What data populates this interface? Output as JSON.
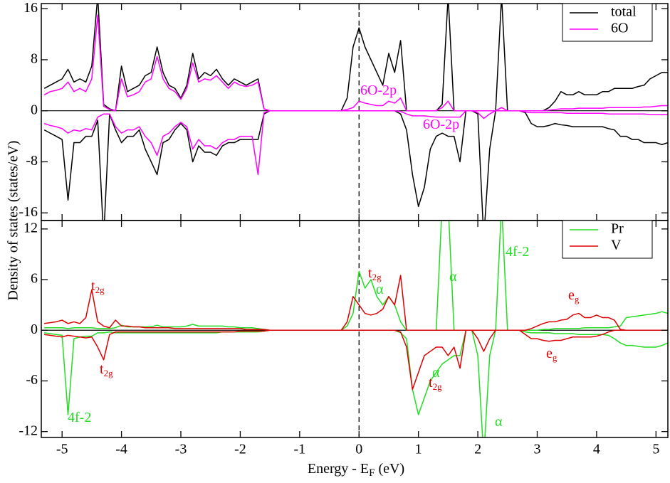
{
  "chart_data": [
    {
      "type": "line",
      "ylabel": "Density of states (states/eV)",
      "x": [
        -5.3,
        -5.2,
        -5.1,
        -5,
        -4.9,
        -4.8,
        -4.7,
        -4.6,
        -4.5,
        -4.4,
        -4.3,
        -4.2,
        -4.1,
        -4,
        -3.9,
        -3.8,
        -3.7,
        -3.6,
        -3.5,
        -3.4,
        -3.3,
        -3.2,
        -3.1,
        -3,
        -2.9,
        -2.8,
        -2.7,
        -2.6,
        -2.5,
        -2.4,
        -2.3,
        -2.2,
        -2.1,
        -2,
        -1.9,
        -1.8,
        -1.7,
        -1.6,
        -1.5,
        -1.4,
        -1.3,
        -1.2,
        -1.1,
        -1,
        -0.9,
        -0.8,
        -0.7,
        -0.6,
        -0.5,
        -0.4,
        -0.3,
        -0.2,
        -0.1,
        0,
        0.1,
        0.2,
        0.3,
        0.4,
        0.5,
        0.6,
        0.7,
        0.8,
        0.9,
        1,
        1.1,
        1.2,
        1.3,
        1.4,
        1.5,
        1.6,
        1.7,
        1.8,
        1.9,
        2,
        2.1,
        2.2,
        2.3,
        2.4,
        2.5,
        2.6,
        2.7,
        2.8,
        2.9,
        3,
        3.1,
        3.2,
        3.3,
        3.4,
        3.5,
        3.6,
        3.7,
        3.8,
        3.9,
        4,
        4.1,
        4.2,
        4.3,
        4.4,
        4.5,
        4.6,
        4.7,
        4.8,
        4.9,
        5,
        5.1,
        5.2
      ],
      "xlim": [
        -5.35,
        5.2
      ],
      "xticks": [
        -5,
        -4,
        -3,
        -2,
        -1,
        0,
        1,
        2,
        3,
        4,
        5
      ],
      "show_xtick_labels": false,
      "ylim": [
        -17.2,
        16.8
      ],
      "yticks": [
        -16,
        -8,
        0,
        8,
        16
      ],
      "fermi_line": 0,
      "legend": "upper right",
      "series": [
        {
          "name": "total",
          "color": "#000000",
          "values": [
            3.5,
            4,
            4.5,
            5,
            6.5,
            4.5,
            5,
            4.5,
            7,
            18,
            1,
            0.3,
            0,
            7,
            3,
            3.5,
            4,
            5.5,
            6,
            10,
            6,
            4,
            3.5,
            2,
            4,
            9,
            5,
            6,
            5.5,
            6.5,
            5,
            4,
            5,
            4.5,
            4,
            4.5,
            5,
            0.3,
            0,
            0,
            0,
            0,
            0,
            0,
            0,
            0,
            0,
            0,
            0,
            0,
            0,
            2,
            10,
            13,
            10,
            8,
            6,
            4,
            9,
            6,
            11,
            0,
            0,
            0,
            0,
            0,
            0,
            1,
            18,
            0,
            0,
            0,
            0,
            0,
            0,
            0,
            0,
            18,
            0,
            0,
            0,
            0,
            0,
            0,
            0,
            0.5,
            1.5,
            3,
            2.5,
            2.5,
            3,
            2.5,
            2.5,
            2.5,
            3,
            3,
            3.5,
            3.5,
            3.5,
            3.5,
            3.8,
            4,
            5,
            5.5,
            6,
            6
          ],
          "values_down": [
            -3,
            -3.5,
            -4,
            -4.5,
            -14,
            -5,
            -5,
            -4,
            -4,
            -1.5,
            -20,
            -0.5,
            -3,
            -5,
            -4,
            -4,
            -3,
            -6,
            -8,
            -10,
            -5,
            -4.5,
            -3,
            -2,
            -3,
            -8,
            -5.5,
            -6.5,
            -6.5,
            -7,
            -5.5,
            -5,
            -5,
            -4.5,
            -4.5,
            -4.5,
            -4.5,
            -0.5,
            0,
            0,
            0,
            0,
            0,
            0,
            0,
            0,
            0,
            0,
            0,
            0,
            0,
            0,
            0,
            0,
            0,
            0,
            0,
            0,
            0,
            0,
            -0.5,
            -3,
            -10,
            -15,
            -12,
            -6,
            -4,
            -3.5,
            -4,
            -4,
            -8,
            0,
            0,
            -0.5,
            -20,
            -6,
            0,
            0,
            0,
            0,
            0,
            -0.3,
            -2,
            -2.5,
            -2.5,
            -2.3,
            -2,
            -2.2,
            -2.3,
            -2.5,
            -2.5,
            -2.5,
            -2.5,
            -2.5,
            -2.5,
            -2.8,
            -3,
            -4,
            -4,
            -4.5,
            -4.5,
            -5,
            -5,
            -5,
            -5.3,
            -5
          ]
        },
        {
          "name": "6O",
          "color": "#ff00ff",
          "values": [
            2.5,
            3,
            3.2,
            3.5,
            4.5,
            3,
            3.5,
            3,
            5,
            15,
            0.7,
            0.2,
            0,
            5,
            2.2,
            2.5,
            3,
            4.5,
            5,
            8.5,
            5,
            3.5,
            3,
            1.8,
            3.5,
            7.5,
            4.5,
            5,
            4.8,
            5.5,
            4.5,
            3.5,
            4.5,
            4,
            3.8,
            4,
            4.5,
            0.3,
            0,
            0,
            0,
            0,
            0,
            0,
            0,
            0,
            0,
            0,
            0,
            0,
            0,
            0.2,
            0.5,
            1.5,
            1.2,
            1,
            0.8,
            0.8,
            1.5,
            1.2,
            2,
            0,
            0,
            0,
            0,
            0,
            0,
            0.5,
            1.5,
            0,
            0,
            0,
            0,
            0,
            0,
            0,
            0,
            0.5,
            0,
            0,
            0,
            0,
            0,
            0,
            0,
            0.1,
            0.2,
            0.3,
            0.3,
            0.3,
            0.4,
            0.4,
            0.4,
            0.4,
            0.4,
            0.5,
            0.5,
            0.5,
            0.5,
            0.5,
            0.5,
            0.6,
            0.6,
            0.7,
            0.8,
            0.8
          ],
          "values_down": [
            -2,
            -2.3,
            -2.5,
            -2.8,
            -3.5,
            -3,
            -3.2,
            -2.8,
            -3,
            -1,
            -0.5,
            -0.5,
            -2.5,
            -3.5,
            -3,
            -3,
            -2.5,
            -4,
            -5,
            -7,
            -4,
            -3.5,
            -2.5,
            -1.8,
            -2.5,
            -6,
            -4.5,
            -5.5,
            -5.5,
            -6,
            -5,
            -4.5,
            -4.5,
            -4,
            -4,
            -4,
            -10,
            -0.3,
            0,
            0,
            0,
            0,
            0,
            0,
            0,
            0,
            0,
            0,
            0,
            0,
            0,
            0,
            0,
            0,
            0,
            0,
            0,
            0,
            0,
            0,
            -0.1,
            -0.5,
            -0.8,
            -0.8,
            -0.8,
            -0.9,
            -1,
            -1,
            -1,
            -1,
            -1,
            0,
            0,
            -0.3,
            -1.2,
            -0.5,
            0,
            0,
            0,
            0,
            0,
            -0.2,
            -0.3,
            -0.3,
            -0.3,
            -0.3,
            -0.3,
            -0.3,
            -0.4,
            -0.4,
            -0.4,
            -0.4,
            -0.4,
            -0.4,
            -0.4,
            -0.5,
            -0.5,
            -0.5,
            -0.5,
            -0.5,
            -0.5,
            -0.5,
            -0.6,
            -0.6,
            -0.6,
            -0.6
          ]
        }
      ],
      "annotations": [
        {
          "text": "6O-2p",
          "color": "#ff00ff"
        },
        {
          "text": "6O-2p",
          "color": "#ff00ff"
        }
      ]
    },
    {
      "type": "line",
      "xlabel": [
        "Energy - E",
        "F",
        " (eV)"
      ],
      "x": [
        -5.3,
        -5.2,
        -5.1,
        -5,
        -4.9,
        -4.8,
        -4.7,
        -4.6,
        -4.5,
        -4.4,
        -4.3,
        -4.2,
        -4.1,
        -4,
        -3.9,
        -3.8,
        -3.7,
        -3.6,
        -3.5,
        -3.4,
        -3.3,
        -3.2,
        -3.1,
        -3,
        -2.9,
        -2.8,
        -2.7,
        -2.6,
        -2.5,
        -2.4,
        -2.3,
        -2.2,
        -2.1,
        -2,
        -1.9,
        -1.8,
        -1.7,
        -1.6,
        -1.5,
        -1.4,
        -1.3,
        -1.2,
        -1.1,
        -1,
        -0.9,
        -0.8,
        -0.7,
        -0.6,
        -0.5,
        -0.4,
        -0.3,
        -0.2,
        -0.1,
        0,
        0.1,
        0.2,
        0.3,
        0.4,
        0.5,
        0.6,
        0.7,
        0.8,
        0.9,
        1,
        1.1,
        1.2,
        1.3,
        1.4,
        1.5,
        1.6,
        1.7,
        1.8,
        1.9,
        2,
        2.1,
        2.2,
        2.3,
        2.4,
        2.5,
        2.6,
        2.7,
        2.8,
        2.9,
        3,
        3.1,
        3.2,
        3.3,
        3.4,
        3.5,
        3.6,
        3.7,
        3.8,
        3.9,
        4,
        4.1,
        4.2,
        4.3,
        4.4,
        4.5,
        4.6,
        4.7,
        4.8,
        4.9,
        5,
        5.1,
        5.2
      ],
      "xlim": [
        -5.35,
        5.2
      ],
      "xticks": [
        -5,
        -4,
        -3,
        -2,
        -1,
        0,
        1,
        2,
        3,
        4,
        5
      ],
      "show_xtick_labels": true,
      "ylim": [
        -12.7,
        13
      ],
      "yticks": [
        -12,
        -6,
        0,
        6,
        12
      ],
      "fermi_line": 0,
      "legend": "upper right",
      "series": [
        {
          "name": "Pr",
          "color": "#22dd22",
          "values": [
            0.3,
            0.3,
            0.3,
            0.3,
            0.2,
            0.3,
            0.3,
            0.3,
            0.3,
            0.2,
            0.2,
            0.2,
            0.3,
            0.6,
            0.4,
            0.4,
            0.4,
            0.4,
            0.4,
            0.6,
            0.4,
            0.4,
            0.4,
            0.4,
            0.5,
            0.7,
            0.5,
            0.5,
            0.5,
            0.5,
            0.5,
            0.4,
            0.4,
            0.3,
            0.3,
            0.3,
            0.2,
            0.1,
            0,
            0,
            0,
            0,
            0,
            0,
            0,
            0,
            0,
            0,
            0,
            0,
            0,
            0.5,
            2,
            7,
            5,
            6,
            4,
            3,
            4,
            3,
            1,
            0,
            0,
            0,
            0,
            0,
            0,
            15,
            15,
            0,
            0,
            0,
            0,
            0,
            0,
            0,
            0,
            15,
            0,
            0,
            0,
            0,
            0,
            0,
            0.1,
            0.1,
            0.2,
            0.2,
            0.2,
            0.2,
            0.2,
            0.3,
            0.3,
            0.3,
            0.3,
            0.3,
            0.4,
            0.5,
            1.5,
            1.6,
            1.7,
            1.8,
            1.9,
            2,
            2.2,
            2
          ],
          "values_down": [
            -0.3,
            -0.4,
            -0.5,
            -0.6,
            -10,
            -1,
            -0.8,
            -0.7,
            -0.7,
            -0.3,
            -0.3,
            -0.2,
            -0.3,
            -0.3,
            -0.3,
            -0.3,
            -0.3,
            -0.3,
            -0.3,
            -0.3,
            -0.3,
            -0.3,
            -0.3,
            -0.3,
            -0.3,
            -0.3,
            -0.3,
            -0.3,
            -0.3,
            -0.3,
            -0.2,
            -0.2,
            -0.2,
            -0.2,
            -0.2,
            -0.2,
            -0.2,
            -0.1,
            0,
            0,
            0,
            0,
            0,
            0,
            0,
            0,
            0,
            0,
            0,
            0,
            0,
            0,
            0,
            0,
            0,
            0,
            0,
            0,
            0,
            0,
            -0.3,
            -1,
            -7,
            -10,
            -8,
            -6,
            -5,
            -4,
            -3.5,
            -3,
            -3,
            0,
            0,
            -3,
            -15,
            -3,
            0,
            0,
            0,
            0,
            0,
            -0.2,
            -0.3,
            -0.3,
            -0.3,
            -0.3,
            -0.4,
            -0.4,
            -0.4,
            -0.4,
            -0.5,
            -0.5,
            -0.5,
            -0.5,
            -0.5,
            -0.6,
            -1,
            -1.5,
            -1.8,
            -1.8,
            -1.9,
            -2,
            -2,
            -2,
            -1.8,
            -1.5
          ]
        },
        {
          "name": "V",
          "color": "#dd0000",
          "values": [
            0.8,
            0.9,
            1,
            1.2,
            0.8,
            1,
            0.8,
            1.5,
            4.8,
            1,
            0.5,
            0.3,
            1.2,
            0.5,
            0.5,
            0.4,
            0.4,
            0.3,
            0.3,
            0.3,
            0.3,
            0.3,
            0.2,
            0.2,
            0.2,
            0.2,
            0.2,
            0.2,
            0.2,
            0.2,
            0.2,
            0.2,
            0.2,
            0.2,
            0.1,
            0.1,
            0.1,
            0.1,
            0,
            0,
            0,
            0,
            0,
            0,
            0,
            0,
            0,
            0,
            0,
            0,
            0,
            1,
            4,
            3,
            2,
            1.8,
            2,
            2.5,
            4,
            3,
            6.5,
            0,
            0,
            0,
            0,
            0,
            0,
            0,
            0,
            0,
            0,
            0,
            0,
            0,
            0,
            0,
            0,
            0,
            0,
            0,
            0,
            0,
            0.2,
            0.5,
            0.8,
            1,
            1,
            1.2,
            1.3,
            1.8,
            2,
            1.5,
            1.5,
            1.8,
            1.5,
            1.5,
            1.2,
            0.1,
            0,
            0,
            0,
            0,
            0,
            0,
            0,
            0
          ],
          "values_down": [
            -0.5,
            -0.6,
            -0.7,
            -0.8,
            -0.6,
            -0.7,
            -0.8,
            -0.9,
            -0.8,
            -2,
            -3.5,
            -0.5,
            -0.2,
            -0.2,
            -0.2,
            -0.2,
            -0.2,
            -0.2,
            -0.2,
            -0.2,
            -0.2,
            -0.2,
            -0.2,
            -0.2,
            -0.2,
            -0.2,
            -0.2,
            -0.2,
            -0.2,
            -0.2,
            -0.2,
            -0.2,
            -0.2,
            -0.1,
            -0.1,
            -0.1,
            -0.1,
            -0.1,
            0,
            0,
            0,
            0,
            0,
            0,
            0,
            0,
            0,
            0,
            0,
            0,
            0,
            0,
            0,
            0,
            0,
            0,
            0,
            0,
            0,
            0,
            -0.2,
            -2,
            -7,
            -5,
            -3,
            -2.5,
            -2,
            -2,
            -3,
            -2,
            -4.5,
            0,
            0,
            -1,
            -2.5,
            -1,
            0,
            0,
            0,
            0,
            0,
            -0.5,
            -1,
            -1,
            -1.2,
            -1.3,
            -1.2,
            -1.2,
            -1,
            -0.8,
            -0.8,
            -0.8,
            -0.8,
            -0.7,
            -0.5,
            -0.2,
            0,
            0,
            0,
            0,
            0,
            0,
            0,
            0,
            0,
            0
          ]
        }
      ],
      "annotations": [
        {
          "text": "t",
          "sub": "2g",
          "color": "#dd0000"
        },
        {
          "text": "t",
          "sub": "2g",
          "color": "#dd0000"
        },
        {
          "text": "4f-2",
          "color": "#22dd22"
        },
        {
          "text": "t",
          "sub": "2g",
          "color": "#dd0000"
        },
        {
          "text": "α",
          "color": "#22dd22"
        },
        {
          "text": "α",
          "color": "#22dd22"
        },
        {
          "text": "4f-2",
          "color": "#22dd22"
        },
        {
          "text": "e",
          "sub": "g",
          "color": "#dd0000"
        },
        {
          "text": "e",
          "sub": "g",
          "color": "#dd0000"
        },
        {
          "text": "α",
          "color": "#22dd22"
        },
        {
          "text": "t",
          "sub": "2g",
          "color": "#dd0000"
        },
        {
          "text": "α",
          "color": "#22dd22"
        }
      ]
    }
  ]
}
